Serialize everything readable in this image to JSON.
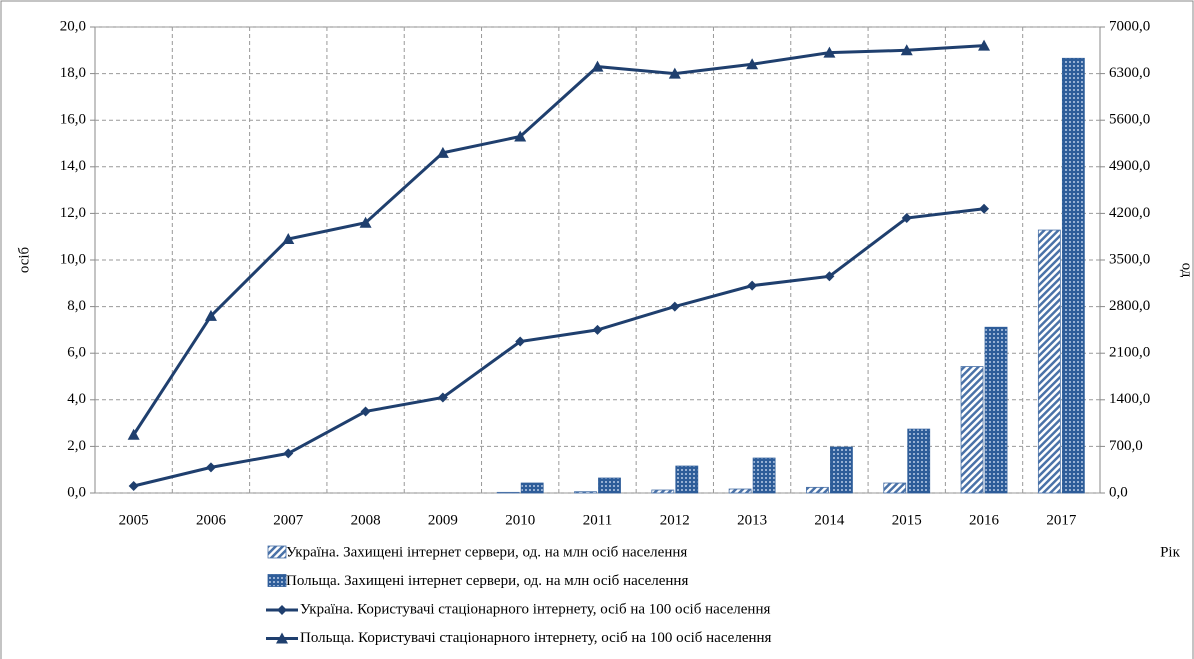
{
  "chart_data": {
    "type": "combo",
    "categories": [
      "2005",
      "2006",
      "2007",
      "2008",
      "2009",
      "2010",
      "2011",
      "2012",
      "2013",
      "2014",
      "2015",
      "2016",
      "2017"
    ],
    "y_label": "осіб",
    "y2_label": "од",
    "x_label": "Рік",
    "ylim": [
      0,
      20
    ],
    "yticks": [
      {
        "value": 0,
        "label": "0,0"
      },
      {
        "value": 2,
        "label": "2,0"
      },
      {
        "value": 4,
        "label": "4,0"
      },
      {
        "value": 6,
        "label": "6,0"
      },
      {
        "value": 8,
        "label": "8,0"
      },
      {
        "value": 10,
        "label": "10,0"
      },
      {
        "value": 12,
        "label": "12,0"
      },
      {
        "value": 14,
        "label": "14,0"
      },
      {
        "value": 16,
        "label": "16,0"
      },
      {
        "value": 18,
        "label": "18,0"
      },
      {
        "value": 20,
        "label": "20,0"
      }
    ],
    "y2lim": [
      0,
      7000
    ],
    "y2ticks": [
      {
        "value": 0,
        "label": "0,0"
      },
      {
        "value": 700,
        "label": "700,0"
      },
      {
        "value": 1400,
        "label": "1400,0"
      },
      {
        "value": 2100,
        "label": "2100,0"
      },
      {
        "value": 2800,
        "label": "2800,0"
      },
      {
        "value": 3500,
        "label": "3500,0"
      },
      {
        "value": 4200,
        "label": "4200,0"
      },
      {
        "value": 4900,
        "label": "4900,0"
      },
      {
        "value": 5600,
        "label": "5600,0"
      },
      {
        "value": 6300,
        "label": "6300,0"
      },
      {
        "value": 7000,
        "label": "7000,0"
      }
    ],
    "grid": true,
    "series": [
      {
        "name": "Україна. Захищені інтернет сервери, од. на млн осіб населення",
        "type": "bar",
        "pattern": "hatch",
        "axis": "y2",
        "color": "#4a72a8",
        "values": [
          null,
          null,
          null,
          null,
          null,
          10,
          20,
          45,
          60,
          85,
          150,
          1900,
          3950
        ]
      },
      {
        "name": "Польща. Захищені інтернет сервери,  од. на млн осіб населення",
        "type": "bar",
        "pattern": "dots",
        "axis": "y2",
        "color": "#2e5d99",
        "values": [
          null,
          null,
          null,
          null,
          null,
          150,
          225,
          405,
          525,
          690,
          960,
          2490,
          6530
        ]
      },
      {
        "name": "Україна. Користувачі стаціонарного інтернету, осіб на 100 осіб населення",
        "type": "line",
        "marker": "diamond",
        "color": "#1f3f6e",
        "values": [
          0.3,
          1.1,
          1.7,
          3.5,
          4.1,
          6.5,
          7.0,
          8.0,
          8.9,
          9.3,
          11.8,
          12.2,
          null
        ]
      },
      {
        "name": "Польща. Користувачі стаціонарного інтернету, осіб на 100 осіб населення",
        "type": "line",
        "marker": "triangle",
        "color": "#1f3f6e",
        "values": [
          2.5,
          7.6,
          10.9,
          11.6,
          14.6,
          15.3,
          18.3,
          18.0,
          18.4,
          18.9,
          19.0,
          19.2,
          null
        ]
      }
    ]
  }
}
